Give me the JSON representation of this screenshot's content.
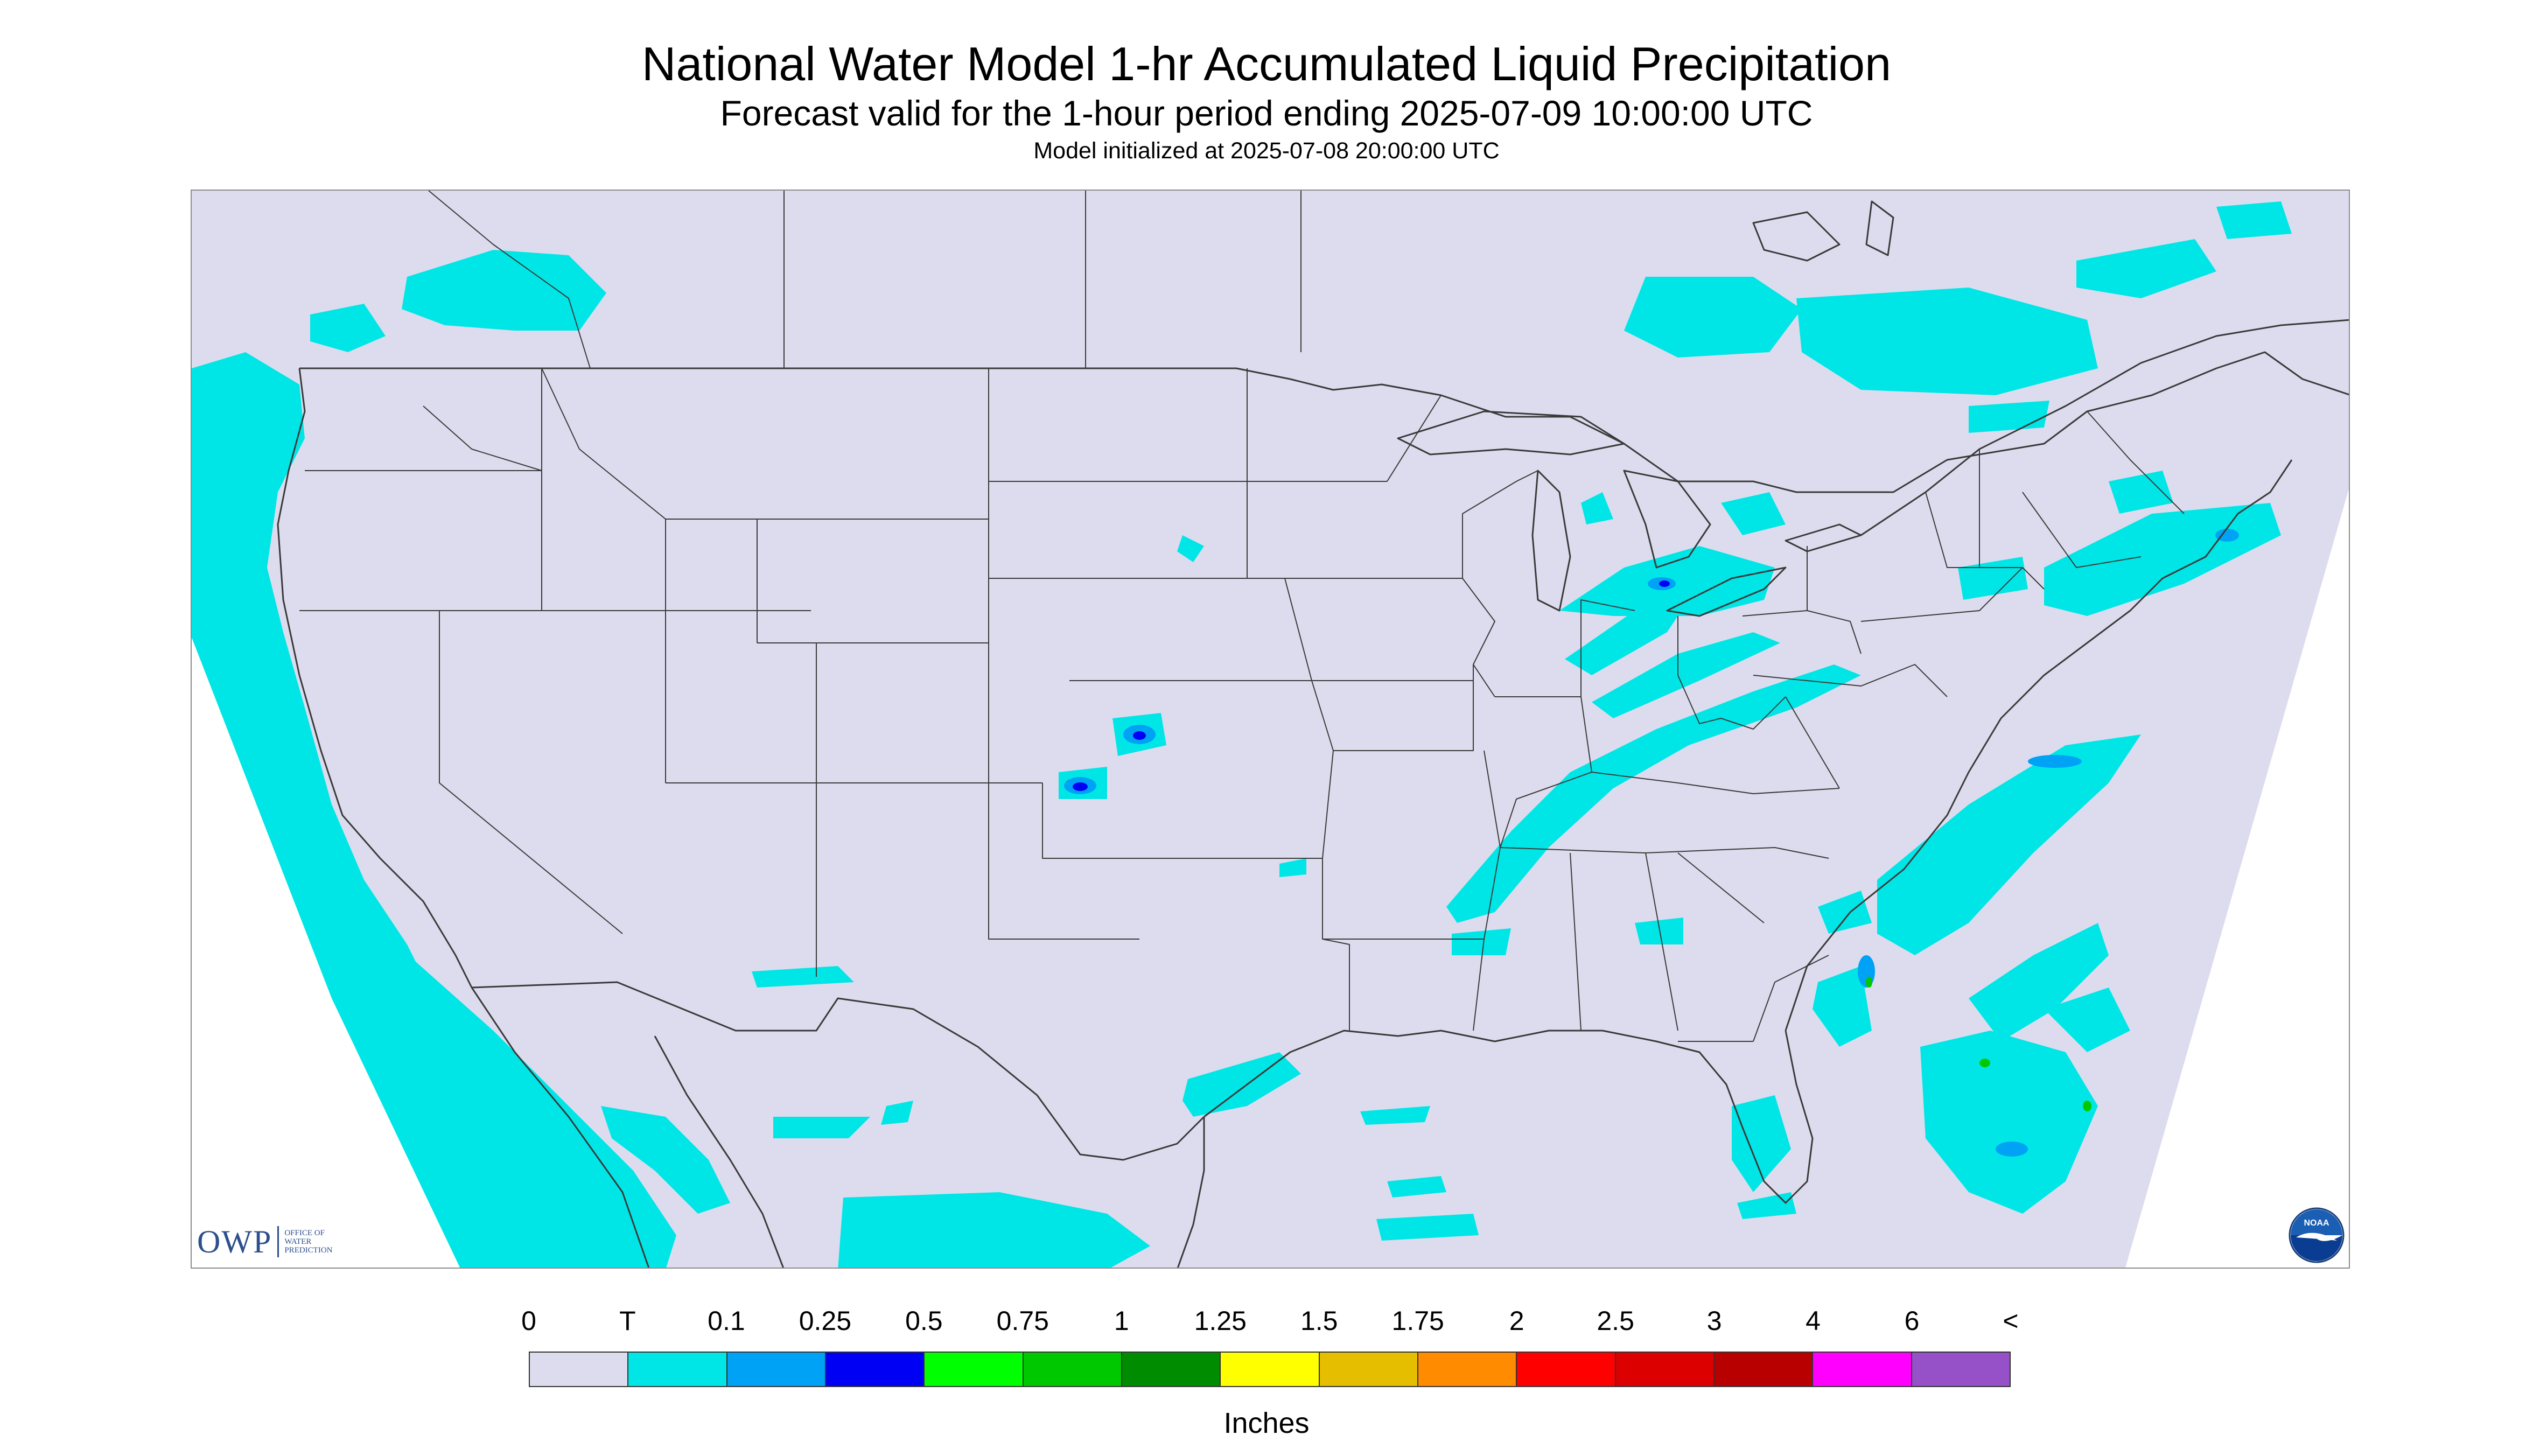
{
  "title": "National Water Model 1-hr Accumulated Liquid Precipitation",
  "subtitle": "Forecast valid for the 1-hour period ending 2025-07-09 10:00:00 UTC",
  "model_init": "Model initialized at 2025-07-08 20:00:00 UTC",
  "owp_logo": {
    "abbrev": "OWP",
    "full": "OFFICE OF\nWATER\nPREDICTION"
  },
  "noaa_logo": {
    "text": "NOAA",
    "icon": "noaa-emblem-icon"
  },
  "legend": {
    "units": "Inches",
    "labels": [
      "0",
      "T",
      "0.1",
      "0.25",
      "0.5",
      "0.75",
      "1",
      "1.25",
      "1.5",
      "1.75",
      "2",
      "2.5",
      "3",
      "4",
      "6",
      "<"
    ],
    "colors": [
      "#dcdcee",
      "#00e6e6",
      "#00a2f5",
      "#0000f5",
      "#00ff00",
      "#00c800",
      "#008c00",
      "#ffff00",
      "#e6be00",
      "#ff8c00",
      "#ff0000",
      "#dc0000",
      "#b90000",
      "#ff00ff",
      "#9650c8"
    ]
  },
  "map": {
    "background_color": "#dcdcee",
    "boundary_color": "#3a3a3a",
    "precip_colors": {
      "trace": "#00e6e6",
      "light": "#00a2f5",
      "moderate": "#0000f5",
      "heavy": "#00c800"
    }
  }
}
